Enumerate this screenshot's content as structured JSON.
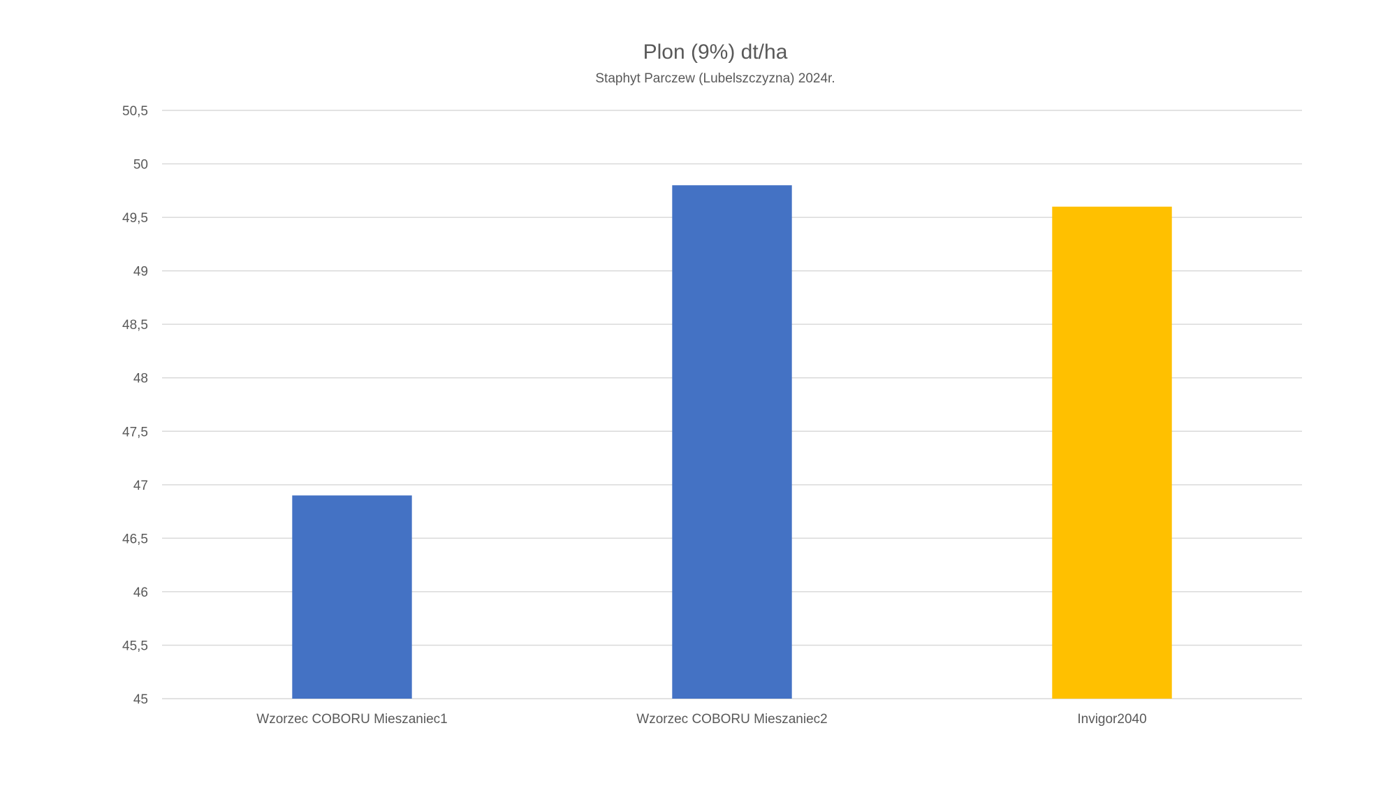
{
  "chart_data": {
    "type": "bar",
    "title": "Plon (9%) dt/ha",
    "subtitle": "Staphyt Parczew (Lubelszczyzna) 2024r.",
    "categories": [
      "Wzorzec COBORU Mieszaniec1",
      "Wzorzec COBORU Mieszaniec2",
      "Invigor2040"
    ],
    "values": [
      46.9,
      49.8,
      49.6
    ],
    "colors": [
      "#4472C4",
      "#4472C4",
      "#FFC000"
    ],
    "ylim": [
      45,
      50.5
    ],
    "ytick_step": 0.5,
    "yticks": [
      "45",
      "45,5",
      "46",
      "46,5",
      "47",
      "47,5",
      "48",
      "48,5",
      "49",
      "49,5",
      "50",
      "50,5"
    ],
    "xlabel": "",
    "ylabel": "",
    "grid": true,
    "gridline_color": "#D9D9D9",
    "legend": "none"
  }
}
